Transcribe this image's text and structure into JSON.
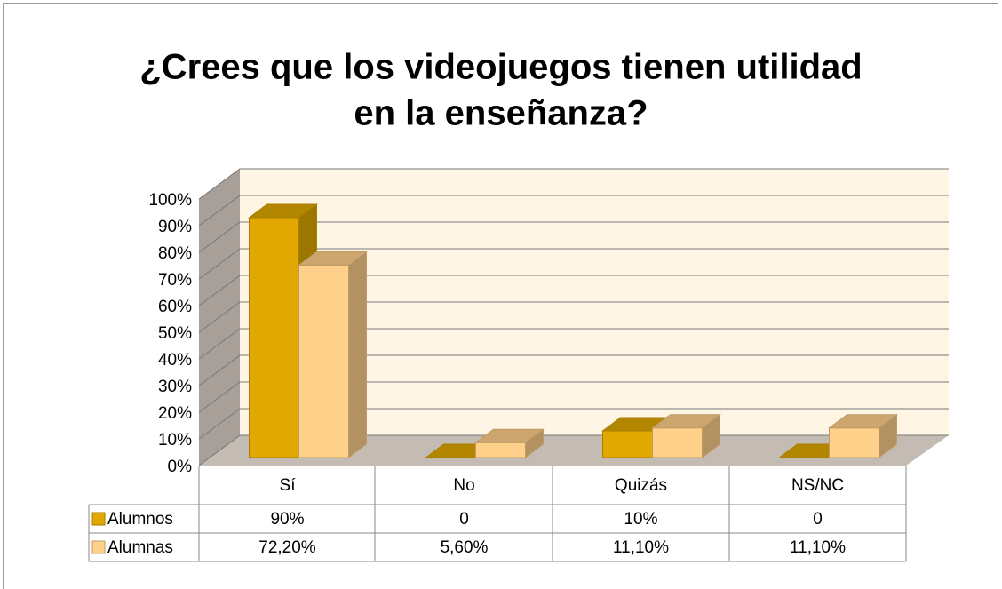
{
  "chart_data": {
    "type": "bar3d",
    "title": [
      "¿Crees que los videojuegos tienen utilidad",
      "en la enseñanza?"
    ],
    "categories": [
      "Sí",
      "No",
      "Quizás",
      "NS/NC"
    ],
    "series": [
      {
        "name": "Alumnos",
        "color": "#e0a800",
        "values": [
          90,
          0,
          10,
          0
        ],
        "value_labels": [
          "90%",
          "0",
          "10%",
          "0"
        ]
      },
      {
        "name": "Alumnas",
        "color": "#ffd08a",
        "values": [
          72.2,
          5.6,
          11.1,
          11.1
        ],
        "value_labels": [
          "72,20%",
          "5,60%",
          "11,10%",
          "11,10%"
        ]
      }
    ],
    "ylim": [
      0,
      100
    ],
    "yticks": [
      {
        "value": 0,
        "label": "0%"
      },
      {
        "value": 10,
        "label": "10%"
      },
      {
        "value": 20,
        "label": "20%"
      },
      {
        "value": 30,
        "label": "30%"
      },
      {
        "value": 40,
        "label": "40%"
      },
      {
        "value": 50,
        "label": "50%"
      },
      {
        "value": 60,
        "label": "60%"
      },
      {
        "value": 70,
        "label": "70%"
      },
      {
        "value": 80,
        "label": "80%"
      },
      {
        "value": 90,
        "label": "90%"
      },
      {
        "value": 100,
        "label": "100%"
      }
    ],
    "grid": true
  }
}
